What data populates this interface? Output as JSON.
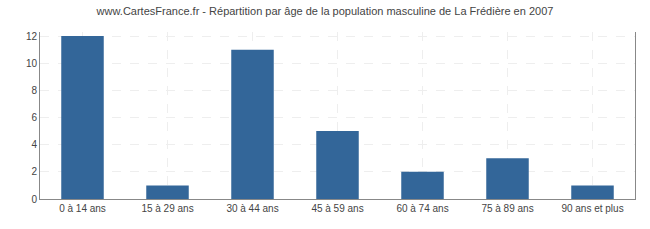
{
  "chart_data": {
    "type": "bar",
    "title": "www.CartesFrance.fr - Répartition par âge de la population masculine de La Frédière en 2007",
    "categories": [
      "0 à 14 ans",
      "15 à 29 ans",
      "30 à 44 ans",
      "45 à 59 ans",
      "60 à 74 ans",
      "75 à 89 ans",
      "90 ans et plus"
    ],
    "values": [
      12,
      1,
      11,
      5,
      2,
      3,
      1
    ],
    "color": "#336699",
    "ylim": [
      0,
      12.3
    ],
    "yticks": [
      0,
      2,
      4,
      6,
      8,
      10,
      12
    ],
    "grid": true
  }
}
